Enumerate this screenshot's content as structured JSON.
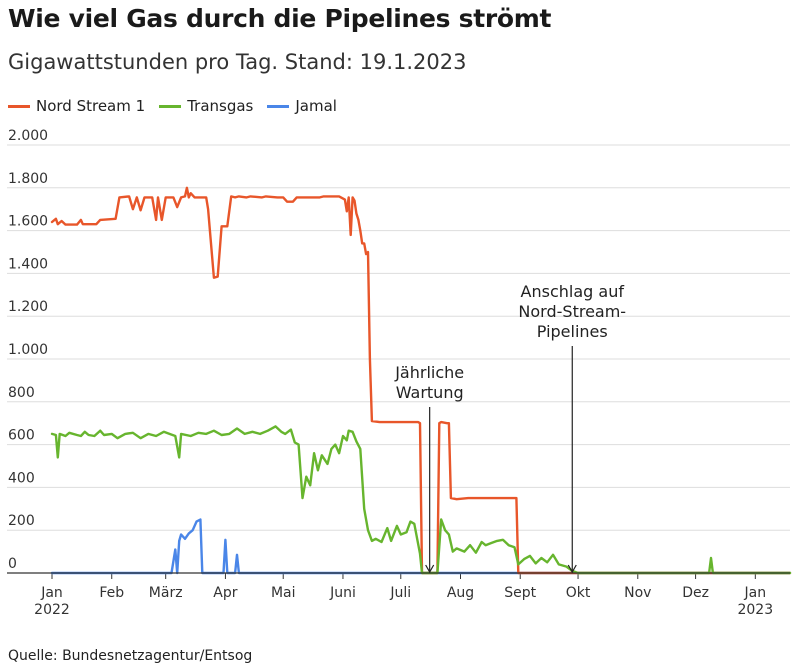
{
  "title": "Wie viel Gas durch die Pipelines strömt",
  "subtitle": "Gigawattstunden pro Tag. Stand: 19.1.2023",
  "source": "Quelle: Bundesnetzagentur/Entsog",
  "colors": {
    "nord_stream_1": "#e8562a",
    "transgas": "#67b52e",
    "jamal": "#4a86e8",
    "grid": "#dddddd",
    "axis": "#333333"
  },
  "chart_data": {
    "type": "line",
    "title": "Wie viel Gas durch die Pipelines strömt",
    "ylabel": "Gigawattstunden pro Tag",
    "ylim": [
      0,
      2000
    ],
    "y_ticks": [
      {
        "value": 0,
        "label": "0"
      },
      {
        "value": 200,
        "label": "200"
      },
      {
        "value": 400,
        "label": "400"
      },
      {
        "value": 600,
        "label": "600"
      },
      {
        "value": 800,
        "label": "800"
      },
      {
        "value": 1000,
        "label": "1.000"
      },
      {
        "value": 1200,
        "label": "1.200"
      },
      {
        "value": 1400,
        "label": "1.400"
      },
      {
        "value": 1600,
        "label": "1.600"
      },
      {
        "value": 1800,
        "label": "1.800"
      },
      {
        "value": 2000,
        "label": "2.000"
      }
    ],
    "xlim": [
      "2022-01-01",
      "2023-01-19"
    ],
    "x_ticks": [
      {
        "date": "2022-01-01",
        "line1": "Jan",
        "line2": "2022"
      },
      {
        "date": "2022-02-01",
        "line1": "Feb",
        "line2": ""
      },
      {
        "date": "2022-03-01",
        "line1": "März",
        "line2": ""
      },
      {
        "date": "2022-04-01",
        "line1": "Apr",
        "line2": ""
      },
      {
        "date": "2022-05-01",
        "line1": "Mai",
        "line2": ""
      },
      {
        "date": "2022-06-01",
        "line1": "Juni",
        "line2": ""
      },
      {
        "date": "2022-07-01",
        "line1": "Juli",
        "line2": ""
      },
      {
        "date": "2022-08-01",
        "line1": "Aug",
        "line2": ""
      },
      {
        "date": "2022-09-01",
        "line1": "Sept",
        "line2": ""
      },
      {
        "date": "2022-10-01",
        "line1": "Okt",
        "line2": ""
      },
      {
        "date": "2022-11-01",
        "line1": "Nov",
        "line2": ""
      },
      {
        "date": "2022-12-01",
        "line1": "Dez",
        "line2": ""
      },
      {
        "date": "2023-01-01",
        "line1": "Jan",
        "line2": "2023"
      }
    ],
    "legend_position": "top-left",
    "grid": true,
    "series": [
      {
        "name": "Nord Stream 1",
        "color": "#e8562a",
        "points": [
          [
            "2022-01-01",
            1640
          ],
          [
            "2022-01-03",
            1655
          ],
          [
            "2022-01-04",
            1630
          ],
          [
            "2022-01-06",
            1645
          ],
          [
            "2022-01-08",
            1628
          ],
          [
            "2022-01-14",
            1628
          ],
          [
            "2022-01-16",
            1650
          ],
          [
            "2022-01-17",
            1630
          ],
          [
            "2022-01-24",
            1630
          ],
          [
            "2022-01-26",
            1650
          ],
          [
            "2022-02-03",
            1655
          ],
          [
            "2022-02-05",
            1755
          ],
          [
            "2022-02-10",
            1760
          ],
          [
            "2022-02-12",
            1700
          ],
          [
            "2022-02-14",
            1755
          ],
          [
            "2022-02-16",
            1695
          ],
          [
            "2022-02-18",
            1755
          ],
          [
            "2022-02-22",
            1755
          ],
          [
            "2022-02-24",
            1650
          ],
          [
            "2022-02-25",
            1755
          ],
          [
            "2022-02-27",
            1650
          ],
          [
            "2022-03-01",
            1755
          ],
          [
            "2022-03-05",
            1755
          ],
          [
            "2022-03-07",
            1710
          ],
          [
            "2022-03-09",
            1755
          ],
          [
            "2022-03-11",
            1760
          ],
          [
            "2022-03-12",
            1800
          ],
          [
            "2022-03-13",
            1755
          ],
          [
            "2022-03-14",
            1775
          ],
          [
            "2022-03-16",
            1755
          ],
          [
            "2022-03-22",
            1755
          ],
          [
            "2022-03-23",
            1700
          ],
          [
            "2022-03-26",
            1380
          ],
          [
            "2022-03-28",
            1385
          ],
          [
            "2022-03-30",
            1620
          ],
          [
            "2022-04-02",
            1620
          ],
          [
            "2022-04-04",
            1760
          ],
          [
            "2022-04-06",
            1755
          ],
          [
            "2022-04-08",
            1760
          ],
          [
            "2022-04-12",
            1755
          ],
          [
            "2022-04-14",
            1760
          ],
          [
            "2022-04-20",
            1755
          ],
          [
            "2022-04-22",
            1760
          ],
          [
            "2022-04-28",
            1755
          ],
          [
            "2022-05-01",
            1755
          ],
          [
            "2022-05-03",
            1735
          ],
          [
            "2022-05-06",
            1735
          ],
          [
            "2022-05-08",
            1755
          ],
          [
            "2022-05-20",
            1755
          ],
          [
            "2022-05-22",
            1760
          ],
          [
            "2022-05-30",
            1760
          ],
          [
            "2022-06-02",
            1745
          ],
          [
            "2022-06-03",
            1690
          ],
          [
            "2022-06-04",
            1755
          ],
          [
            "2022-06-05",
            1580
          ],
          [
            "2022-06-06",
            1755
          ],
          [
            "2022-06-07",
            1740
          ],
          [
            "2022-06-08",
            1680
          ],
          [
            "2022-06-09",
            1650
          ],
          [
            "2022-06-10",
            1600
          ],
          [
            "2022-06-11",
            1540
          ],
          [
            "2022-06-12",
            1540
          ],
          [
            "2022-06-13",
            1490
          ],
          [
            "2022-06-14",
            1500
          ],
          [
            "2022-06-15",
            1000
          ],
          [
            "2022-06-16",
            710
          ],
          [
            "2022-06-20",
            705
          ],
          [
            "2022-06-30",
            705
          ],
          [
            "2022-07-05",
            705
          ],
          [
            "2022-07-10",
            705
          ],
          [
            "2022-07-11",
            700
          ],
          [
            "2022-07-12",
            0
          ],
          [
            "2022-07-20",
            0
          ],
          [
            "2022-07-21",
            700
          ],
          [
            "2022-07-22",
            705
          ],
          [
            "2022-07-25",
            700
          ],
          [
            "2022-07-26",
            700
          ],
          [
            "2022-07-27",
            350
          ],
          [
            "2022-07-30",
            345
          ],
          [
            "2022-08-05",
            350
          ],
          [
            "2022-08-20",
            350
          ],
          [
            "2022-08-30",
            350
          ],
          [
            "2022-08-31",
            0
          ],
          [
            "2022-09-30",
            0
          ],
          [
            "2022-12-31",
            0
          ],
          [
            "2023-01-19",
            0
          ]
        ]
      },
      {
        "name": "Transgas",
        "color": "#67b52e",
        "points": [
          [
            "2022-01-01",
            650
          ],
          [
            "2022-01-03",
            645
          ],
          [
            "2022-01-04",
            540
          ],
          [
            "2022-01-05",
            650
          ],
          [
            "2022-01-08",
            640
          ],
          [
            "2022-01-10",
            655
          ],
          [
            "2022-01-14",
            645
          ],
          [
            "2022-01-16",
            640
          ],
          [
            "2022-01-18",
            660
          ],
          [
            "2022-01-20",
            645
          ],
          [
            "2022-01-23",
            640
          ],
          [
            "2022-01-26",
            665
          ],
          [
            "2022-01-28",
            645
          ],
          [
            "2022-02-01",
            650
          ],
          [
            "2022-02-04",
            630
          ],
          [
            "2022-02-08",
            650
          ],
          [
            "2022-02-12",
            655
          ],
          [
            "2022-02-16",
            630
          ],
          [
            "2022-02-20",
            650
          ],
          [
            "2022-02-24",
            640
          ],
          [
            "2022-02-28",
            660
          ],
          [
            "2022-03-03",
            650
          ],
          [
            "2022-03-06",
            640
          ],
          [
            "2022-03-08",
            540
          ],
          [
            "2022-03-09",
            650
          ],
          [
            "2022-03-14",
            640
          ],
          [
            "2022-03-18",
            655
          ],
          [
            "2022-03-22",
            650
          ],
          [
            "2022-03-26",
            665
          ],
          [
            "2022-03-30",
            645
          ],
          [
            "2022-04-03",
            650
          ],
          [
            "2022-04-07",
            675
          ],
          [
            "2022-04-11",
            650
          ],
          [
            "2022-04-15",
            660
          ],
          [
            "2022-04-19",
            650
          ],
          [
            "2022-04-23",
            665
          ],
          [
            "2022-04-27",
            685
          ],
          [
            "2022-04-30",
            660
          ],
          [
            "2022-05-02",
            650
          ],
          [
            "2022-05-05",
            670
          ],
          [
            "2022-05-07",
            610
          ],
          [
            "2022-05-09",
            600
          ],
          [
            "2022-05-11",
            350
          ],
          [
            "2022-05-13",
            450
          ],
          [
            "2022-05-15",
            410
          ],
          [
            "2022-05-17",
            560
          ],
          [
            "2022-05-19",
            480
          ],
          [
            "2022-05-21",
            550
          ],
          [
            "2022-05-24",
            510
          ],
          [
            "2022-05-26",
            580
          ],
          [
            "2022-05-28",
            600
          ],
          [
            "2022-05-30",
            560
          ],
          [
            "2022-06-01",
            640
          ],
          [
            "2022-06-03",
            620
          ],
          [
            "2022-06-04",
            665
          ],
          [
            "2022-06-06",
            660
          ],
          [
            "2022-06-08",
            615
          ],
          [
            "2022-06-10",
            580
          ],
          [
            "2022-06-12",
            300
          ],
          [
            "2022-06-14",
            200
          ],
          [
            "2022-06-16",
            150
          ],
          [
            "2022-06-18",
            160
          ],
          [
            "2022-06-21",
            145
          ],
          [
            "2022-06-24",
            210
          ],
          [
            "2022-06-26",
            150
          ],
          [
            "2022-06-29",
            220
          ],
          [
            "2022-07-01",
            180
          ],
          [
            "2022-07-04",
            190
          ],
          [
            "2022-07-06",
            240
          ],
          [
            "2022-07-08",
            230
          ],
          [
            "2022-07-11",
            90
          ],
          [
            "2022-07-12",
            0
          ],
          [
            "2022-07-20",
            0
          ],
          [
            "2022-07-22",
            250
          ],
          [
            "2022-07-24",
            200
          ],
          [
            "2022-07-26",
            180
          ],
          [
            "2022-07-28",
            100
          ],
          [
            "2022-07-30",
            115
          ],
          [
            "2022-08-03",
            100
          ],
          [
            "2022-08-06",
            130
          ],
          [
            "2022-08-09",
            95
          ],
          [
            "2022-08-12",
            145
          ],
          [
            "2022-08-14",
            130
          ],
          [
            "2022-08-17",
            140
          ],
          [
            "2022-08-20",
            150
          ],
          [
            "2022-08-23",
            155
          ],
          [
            "2022-08-26",
            130
          ],
          [
            "2022-08-29",
            120
          ],
          [
            "2022-08-31",
            40
          ],
          [
            "2022-09-03",
            65
          ],
          [
            "2022-09-06",
            80
          ],
          [
            "2022-09-09",
            45
          ],
          [
            "2022-09-12",
            70
          ],
          [
            "2022-09-15",
            50
          ],
          [
            "2022-09-18",
            85
          ],
          [
            "2022-09-21",
            40
          ],
          [
            "2022-09-25",
            30
          ],
          [
            "2022-09-28",
            10
          ],
          [
            "2022-10-01",
            0
          ],
          [
            "2022-12-08",
            0
          ],
          [
            "2022-12-09",
            70
          ],
          [
            "2022-12-10",
            0
          ],
          [
            "2023-01-19",
            0
          ]
        ]
      },
      {
        "name": "Jamal",
        "color": "#4a86e8",
        "points": [
          [
            "2022-01-01",
            0
          ],
          [
            "2022-03-04",
            0
          ],
          [
            "2022-03-06",
            110
          ],
          [
            "2022-03-07",
            0
          ],
          [
            "2022-03-08",
            150
          ],
          [
            "2022-03-09",
            180
          ],
          [
            "2022-03-11",
            160
          ],
          [
            "2022-03-13",
            185
          ],
          [
            "2022-03-15",
            200
          ],
          [
            "2022-03-17",
            240
          ],
          [
            "2022-03-19",
            250
          ],
          [
            "2022-03-20",
            0
          ],
          [
            "2022-03-31",
            0
          ],
          [
            "2022-04-01",
            155
          ],
          [
            "2022-04-02",
            0
          ],
          [
            "2022-04-06",
            0
          ],
          [
            "2022-04-07",
            85
          ],
          [
            "2022-04-08",
            0
          ],
          [
            "2023-01-19",
            0
          ]
        ]
      }
    ],
    "annotations": [
      {
        "date": "2022-07-16",
        "lines": [
          "Jährliche",
          "Wartung"
        ],
        "arrow_to": 0
      },
      {
        "date": "2022-09-28",
        "lines": [
          "Anschlag auf",
          "Nord-Stream-",
          "Pipelines"
        ],
        "arrow_to": 0
      }
    ]
  }
}
